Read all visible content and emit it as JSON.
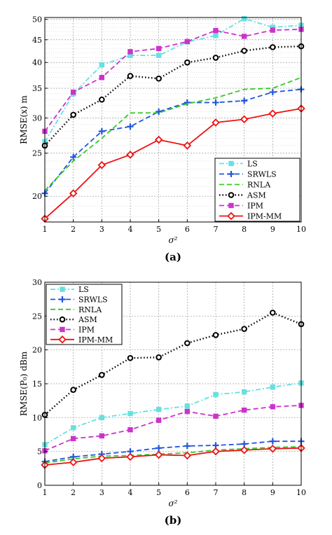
{
  "chart_data": [
    {
      "type": "line",
      "panel_label": "(a)",
      "xlabel": "σ²",
      "ylabel": "RMSE(x) m",
      "x": [
        1,
        2,
        3,
        4,
        5,
        6,
        7,
        8,
        9,
        10
      ],
      "xlim": [
        1,
        10
      ],
      "ylim": [
        17.5,
        50.5
      ],
      "y_scale": "log",
      "yticks": [
        20,
        25,
        30,
        35,
        40,
        45,
        50
      ],
      "grid": true,
      "legend_position": "bottom-right",
      "series": [
        {
          "name": "LS",
          "color": "#66e0e0",
          "linestyle": "dash-dot",
          "marker": "square",
          "values": [
            26.5,
            34.0,
            39.5,
            41.5,
            41.5,
            44.5,
            46.0,
            50.2,
            48.0,
            48.5
          ]
        },
        {
          "name": "SRWLS",
          "color": "#2255dd",
          "linestyle": "dashed",
          "marker": "plus",
          "values": [
            20.3,
            24.5,
            28.0,
            28.7,
            31.0,
            32.5,
            32.5,
            32.8,
            34.3,
            34.8
          ]
        },
        {
          "name": "RNLA",
          "color": "#33cc22",
          "linestyle": "dashed",
          "marker": "none",
          "values": [
            20.6,
            24.0,
            27.0,
            30.8,
            30.8,
            32.3,
            33.3,
            34.8,
            35.0,
            37.0
          ]
        },
        {
          "name": "ASM",
          "color": "#000000",
          "linestyle": "dotted",
          "marker": "circle",
          "values": [
            26.0,
            30.5,
            33.0,
            37.3,
            36.8,
            40.0,
            41.0,
            42.5,
            43.3,
            43.5
          ]
        },
        {
          "name": "IPM",
          "color": "#cc33cc",
          "linestyle": "dashed",
          "marker": "square",
          "values": [
            28.0,
            34.3,
            37.0,
            42.3,
            43.0,
            44.6,
            47.2,
            45.8,
            47.3,
            47.5
          ]
        },
        {
          "name": "IPM-MM",
          "color": "#ee1111",
          "linestyle": "solid",
          "marker": "diamond",
          "values": [
            17.8,
            20.3,
            23.5,
            24.8,
            26.8,
            26.0,
            29.3,
            29.8,
            30.7,
            31.5
          ]
        }
      ]
    },
    {
      "type": "line",
      "panel_label": "(b)",
      "xlabel": "σ²",
      "ylabel": "RMSE(P₀) dBm",
      "x": [
        1,
        2,
        3,
        4,
        5,
        6,
        7,
        8,
        9,
        10
      ],
      "xlim": [
        1,
        10
      ],
      "ylim": [
        0,
        30
      ],
      "yticks": [
        0,
        5,
        10,
        15,
        20,
        25,
        30
      ],
      "grid": true,
      "legend_position": "top-left",
      "series": [
        {
          "name": "LS",
          "color": "#66e0e0",
          "linestyle": "dash-dot",
          "marker": "square",
          "values": [
            6.0,
            8.5,
            10.0,
            10.6,
            11.2,
            11.7,
            13.4,
            13.8,
            14.5,
            15.1
          ]
        },
        {
          "name": "SRWLS",
          "color": "#2255dd",
          "linestyle": "dashed",
          "marker": "plus",
          "values": [
            3.5,
            4.2,
            4.6,
            5.0,
            5.5,
            5.8,
            5.9,
            6.1,
            6.5,
            6.5
          ]
        },
        {
          "name": "RNLA",
          "color": "#33cc22",
          "linestyle": "dashed",
          "marker": "none",
          "values": [
            3.3,
            3.9,
            4.3,
            4.4,
            4.6,
            4.8,
            5.2,
            5.4,
            5.6,
            5.7
          ]
        },
        {
          "name": "ASM",
          "color": "#000000",
          "linestyle": "dotted",
          "marker": "circle",
          "values": [
            10.4,
            14.1,
            16.3,
            18.8,
            18.9,
            21.0,
            22.2,
            23.1,
            25.5,
            23.8
          ]
        },
        {
          "name": "IPM",
          "color": "#cc33cc",
          "linestyle": "dashed",
          "marker": "square",
          "values": [
            5.1,
            6.9,
            7.3,
            8.2,
            9.6,
            10.9,
            10.2,
            11.1,
            11.6,
            11.8
          ]
        },
        {
          "name": "IPM-MM",
          "color": "#ee1111",
          "linestyle": "solid",
          "marker": "diamond",
          "values": [
            3.0,
            3.4,
            4.0,
            4.2,
            4.5,
            4.4,
            5.0,
            5.2,
            5.4,
            5.5
          ]
        }
      ]
    }
  ]
}
